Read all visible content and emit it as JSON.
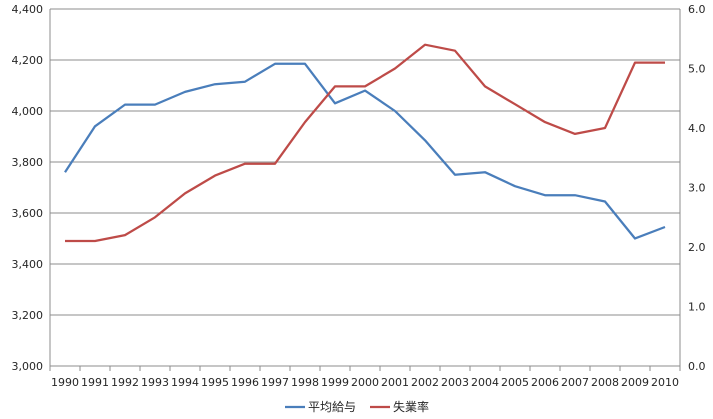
{
  "chart_data": {
    "type": "line",
    "title": "",
    "xlabel": "",
    "ylabel": "",
    "x": [
      "1990",
      "1991",
      "1992",
      "1993",
      "1994",
      "1995",
      "1996",
      "1997",
      "1998",
      "1999",
      "2000",
      "2001",
      "2002",
      "2003",
      "2004",
      "2005",
      "2006",
      "2007",
      "2008",
      "2009",
      "2010"
    ],
    "y_left": {
      "lim": [
        3000,
        4400
      ],
      "ticks": [
        "3,000",
        "3,200",
        "3,400",
        "3,600",
        "3,800",
        "4,000",
        "4,200",
        "4,400"
      ]
    },
    "y_right": {
      "lim": [
        0.0,
        6.0
      ],
      "ticks": [
        "0.0",
        "1.0",
        "2.0",
        "3.0",
        "4.0",
        "5.0",
        "6.0"
      ]
    },
    "grid": true,
    "legend_position": "bottom",
    "series": [
      {
        "name": "平均給与",
        "axis": "left",
        "color": "#4a7ebb",
        "values": [
          3760,
          3940,
          4025,
          4025,
          4075,
          4105,
          4115,
          4185,
          4185,
          4030,
          4080,
          4000,
          3885,
          3750,
          3760,
          3705,
          3670,
          3670,
          3645,
          3500,
          3545
        ]
      },
      {
        "name": "失業率",
        "axis": "right",
        "color": "#be4b48",
        "values": [
          2.1,
          2.1,
          2.2,
          2.5,
          2.9,
          3.2,
          3.4,
          3.4,
          4.1,
          4.7,
          4.7,
          5.0,
          5.4,
          5.3,
          4.7,
          4.4,
          4.1,
          3.9,
          4.0,
          5.1,
          5.1
        ]
      }
    ]
  }
}
